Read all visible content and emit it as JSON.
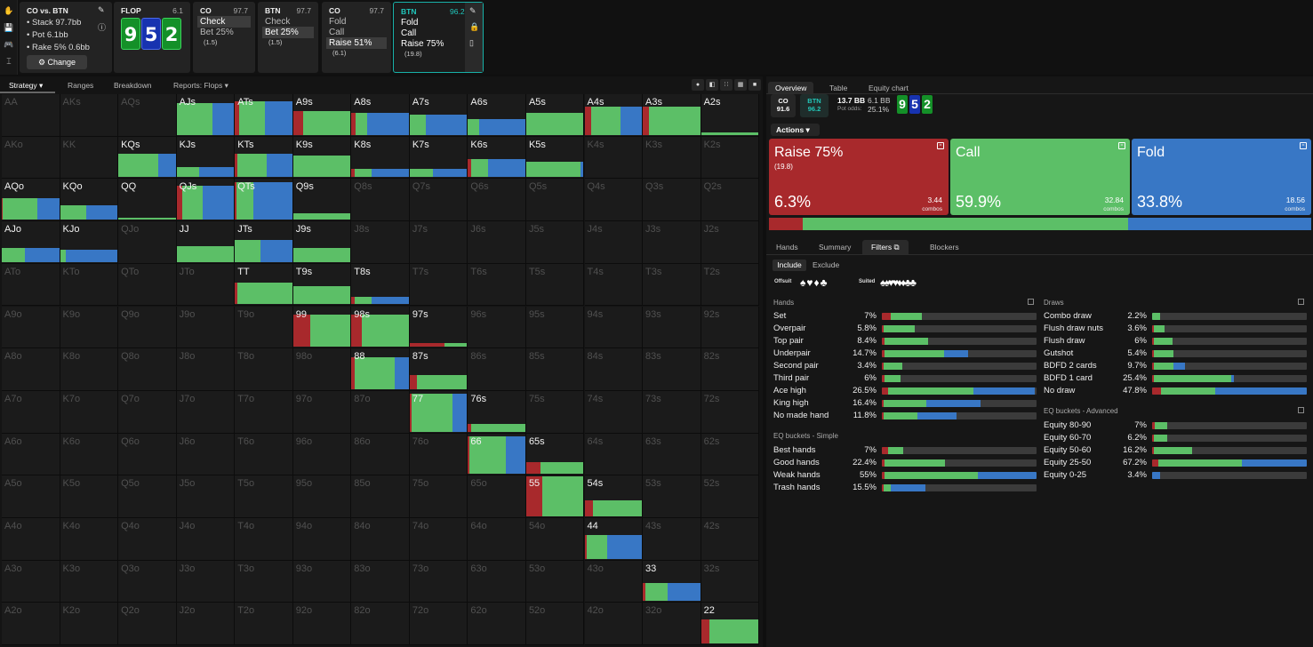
{
  "colors": {
    "raise": "#a8292c",
    "call": "#5cbf67",
    "fold": "#3877c5"
  },
  "top": {
    "tool_icons": [
      "hand-icon",
      "save-icon",
      "gamepad-icon",
      "text-cursor-icon"
    ],
    "matchup": {
      "title": "CO vs. BTN",
      "stack": "Stack 97.7bb",
      "pot": "Pot 6.1bb",
      "rake": "Rake 5% 0.6bb",
      "change": "Change"
    },
    "flop": {
      "label": "FLOP",
      "value": "6.1",
      "cards": [
        "9",
        "5",
        "2"
      ]
    },
    "co1": {
      "label": "CO",
      "value": "97.7",
      "opts": [
        {
          "t": "Check",
          "s": ""
        },
        {
          "t": "Bet 25%",
          "s": "(1.5)"
        }
      ]
    },
    "btn1": {
      "label": "BTN",
      "value": "97.7",
      "opts": [
        {
          "t": "Check",
          "s": ""
        },
        {
          "t": "Bet 25%",
          "s": "(1.5)"
        }
      ]
    },
    "co2": {
      "label": "CO",
      "value": "97.7",
      "opts": [
        {
          "t": "Fold",
          "s": ""
        },
        {
          "t": "Call",
          "s": ""
        },
        {
          "t": "Raise 51%",
          "s": "(6.1)"
        }
      ]
    },
    "btn2": {
      "label": "BTN",
      "value": "96.2",
      "opts": [
        {
          "t": "Fold",
          "s": ""
        },
        {
          "t": "Call",
          "s": ""
        },
        {
          "t": "Raise 75%",
          "s": "(19.8)"
        }
      ]
    }
  },
  "grid_tabs": [
    "Strategy",
    "Ranges",
    "Breakdown",
    "Reports: Flops"
  ],
  "grid": {
    "ranks": [
      "A",
      "K",
      "Q",
      "J",
      "T",
      "9",
      "8",
      "7",
      "6",
      "5",
      "4",
      "3",
      "2"
    ],
    "cells": {
      "AJs": [
        0.8,
        [
          0,
          0.62,
          0.38
        ]
      ],
      "ATs": [
        0.85,
        [
          0.08,
          0.45,
          0.47
        ]
      ],
      "A9s": [
        0.6,
        [
          0.18,
          0.82,
          0
        ]
      ],
      "A8s": [
        0.55,
        [
          0.08,
          0.2,
          0.72
        ]
      ],
      "A7s": [
        0.5,
        [
          0,
          0.28,
          0.72
        ]
      ],
      "A6s": [
        0.4,
        [
          0,
          0.2,
          0.8
        ]
      ],
      "A5s": [
        0.55,
        [
          0,
          1,
          0
        ]
      ],
      "A4s": [
        0.7,
        [
          0.12,
          0.5,
          0.38
        ]
      ],
      "A3s": [
        0.7,
        [
          0.1,
          0.9,
          0
        ]
      ],
      "A2s": [
        0.05,
        [
          0,
          1,
          0
        ]
      ],
      "KQs": [
        0.6,
        [
          0,
          0.7,
          0.3
        ]
      ],
      "KJs": [
        0.25,
        [
          0,
          0.4,
          0.6
        ]
      ],
      "KTs": [
        0.6,
        [
          0.05,
          0.5,
          0.45
        ]
      ],
      "K9s": [
        0.55,
        [
          0,
          1,
          0
        ]
      ],
      "K8s": [
        0.2,
        [
          0.05,
          0.3,
          0.65
        ]
      ],
      "K7s": [
        0.2,
        [
          0,
          0.4,
          0.6
        ]
      ],
      "K6s": [
        0.45,
        [
          0.05,
          0.3,
          0.65
        ]
      ],
      "K5s": [
        0.4,
        [
          0,
          0.95,
          0.05
        ]
      ],
      "AQo": [
        0.55,
        [
          0.02,
          0.6,
          0.38
        ]
      ],
      "KQo": [
        0.35,
        [
          0,
          0.45,
          0.55
        ]
      ],
      "QQ": [
        0.03,
        [
          0,
          1,
          0
        ]
      ],
      "QJs": [
        0.85,
        [
          0.1,
          0.35,
          0.55
        ]
      ],
      "QTs": [
        0.95,
        [
          0.03,
          0.3,
          0.67
        ]
      ],
      "Q9s": [
        0.15,
        [
          0,
          1,
          0
        ]
      ],
      "AJo": [
        0.35,
        [
          0,
          0.4,
          0.6
        ]
      ],
      "KJo": [
        0.3,
        [
          0,
          0.1,
          0.9
        ]
      ],
      "JJ": [
        0.4,
        [
          0,
          1,
          0
        ]
      ],
      "JTs": [
        0.55,
        [
          0,
          0.45,
          0.55
        ]
      ],
      "J9s": [
        0.35,
        [
          0,
          1,
          0
        ]
      ],
      "TT": [
        0.55,
        [
          0.04,
          0.96,
          0
        ]
      ],
      "T9s": [
        0.45,
        [
          0,
          1,
          0
        ]
      ],
      "T8s": [
        0.2,
        [
          0.05,
          0.3,
          0.65
        ]
      ],
      "99": [
        0.8,
        [
          0.3,
          0.7,
          0
        ]
      ],
      "98s": [
        0.8,
        [
          0.18,
          0.82,
          0
        ]
      ],
      "97s": [
        0.1,
        [
          0.6,
          0.4,
          0
        ]
      ],
      "88": [
        0.8,
        [
          0.05,
          0.7,
          0.25
        ]
      ],
      "87s": [
        0.35,
        [
          0.12,
          0.88,
          0
        ]
      ],
      "77": [
        0.95,
        [
          0.03,
          0.72,
          0.25
        ]
      ],
      "76s": [
        0.2,
        [
          0.05,
          0.95,
          0
        ]
      ],
      "66": [
        0.95,
        [
          0.03,
          0.63,
          0.34
        ]
      ],
      "65s": [
        0.3,
        [
          0.25,
          0.75,
          0
        ]
      ],
      "55": [
        1.0,
        [
          0.28,
          0.72,
          0
        ]
      ],
      "54s": [
        0.4,
        [
          0.15,
          0.85,
          0
        ]
      ],
      "44": [
        0.6,
        [
          0.04,
          0.36,
          0.6
        ]
      ],
      "33": [
        0.45,
        [
          0.04,
          0.4,
          0.56
        ]
      ],
      "22": [
        0.6,
        [
          0.15,
          0.85,
          0
        ]
      ]
    }
  },
  "right": {
    "tabs": [
      "Overview",
      "Table",
      "Equity chart"
    ],
    "co": {
      "name": "CO",
      "stack": "91.6"
    },
    "btn": {
      "name": "BTN",
      "stack": "96.2"
    },
    "pot": {
      "bb": "13.7 BB",
      "bb2": "6.1 BB",
      "odds_label": "Pot odds:",
      "odds": "25.1%"
    },
    "board": [
      "9",
      "5",
      "2"
    ],
    "actions_label": "Actions",
    "actions": [
      {
        "name": "Raise 75%",
        "size": "(19.8)",
        "pct": "6.3%",
        "combos": "3.44",
        "frac": 0.063
      },
      {
        "name": "Call",
        "size": "",
        "pct": "59.9%",
        "combos": "32.84",
        "frac": 0.599
      },
      {
        "name": "Fold",
        "size": "",
        "pct": "33.8%",
        "combos": "18.56",
        "frac": 0.338
      }
    ],
    "combos_label": "combos",
    "subtabs": [
      "Hands",
      "Summary",
      "Filters",
      "Blockers"
    ],
    "include": "Include",
    "exclude": "Exclude",
    "offsuit": "Offsuit",
    "suited": "Suited",
    "hands_hdr": "Hands",
    "hands": [
      {
        "n": "Set",
        "p": "7%",
        "b": [
          0.06,
          0.2,
          0
        ]
      },
      {
        "n": "Overpair",
        "p": "5.8%",
        "b": [
          0.01,
          0.2,
          0
        ]
      },
      {
        "n": "Top pair",
        "p": "8.4%",
        "b": [
          0.02,
          0.28,
          0
        ]
      },
      {
        "n": "Underpair",
        "p": "14.7%",
        "b": [
          0.02,
          0.38,
          0.16
        ]
      },
      {
        "n": "Second pair",
        "p": "3.4%",
        "b": [
          0.01,
          0.12,
          0
        ]
      },
      {
        "n": "Third pair",
        "p": "6%",
        "b": [
          0.02,
          0.1,
          0
        ]
      },
      {
        "n": "Ace high",
        "p": "26.5%",
        "b": [
          0.04,
          0.55,
          0.4
        ]
      },
      {
        "n": "King high",
        "p": "16.4%",
        "b": [
          0.01,
          0.28,
          0.35
        ]
      },
      {
        "n": "No made hand",
        "p": "11.8%",
        "b": [
          0.01,
          0.22,
          0.25
        ]
      }
    ],
    "eq_simple_hdr": "EQ buckets - Simple",
    "eq_simple": [
      {
        "n": "Best hands",
        "p": "7%",
        "b": [
          0.04,
          0.1,
          0
        ]
      },
      {
        "n": "Good hands",
        "p": "22.4%",
        "b": [
          0.02,
          0.39,
          0
        ]
      },
      {
        "n": "Weak hands",
        "p": "55%",
        "b": [
          0.02,
          0.6,
          0.38
        ]
      },
      {
        "n": "Trash hands",
        "p": "15.5%",
        "b": [
          0.01,
          0.05,
          0.22
        ]
      }
    ],
    "draws_hdr": "Draws",
    "draws": [
      {
        "n": "Combo draw",
        "p": "2.2%",
        "b": [
          0,
          0.05,
          0
        ]
      },
      {
        "n": "Flush draw nuts",
        "p": "3.6%",
        "b": [
          0.01,
          0.07,
          0
        ]
      },
      {
        "n": "Flush draw",
        "p": "6%",
        "b": [
          0.01,
          0.12,
          0
        ]
      },
      {
        "n": "Gutshot",
        "p": "5.4%",
        "b": [
          0.01,
          0.13,
          0
        ]
      },
      {
        "n": "BDFD 2 cards",
        "p": "9.7%",
        "b": [
          0.01,
          0.13,
          0.07
        ]
      },
      {
        "n": "BDFD 1 card",
        "p": "25.4%",
        "b": [
          0.01,
          0.5,
          0.02
        ]
      },
      {
        "n": "No draw",
        "p": "47.8%",
        "b": [
          0.06,
          0.35,
          0.59
        ]
      }
    ],
    "eq_adv_hdr": "EQ buckets - Advanced",
    "eq_adv": [
      {
        "n": "Equity 80-90",
        "p": "7%",
        "b": [
          0.02,
          0.08,
          0
        ]
      },
      {
        "n": "Equity 60-70",
        "p": "6.2%",
        "b": [
          0.01,
          0.09,
          0
        ]
      },
      {
        "n": "Equity 50-60",
        "p": "16.2%",
        "b": [
          0.01,
          0.25,
          0
        ]
      },
      {
        "n": "Equity 25-50",
        "p": "67.2%",
        "b": [
          0.04,
          0.54,
          0.42
        ]
      },
      {
        "n": "Equity 0-25",
        "p": "3.4%",
        "b": [
          0,
          0,
          0.05
        ]
      }
    ]
  }
}
